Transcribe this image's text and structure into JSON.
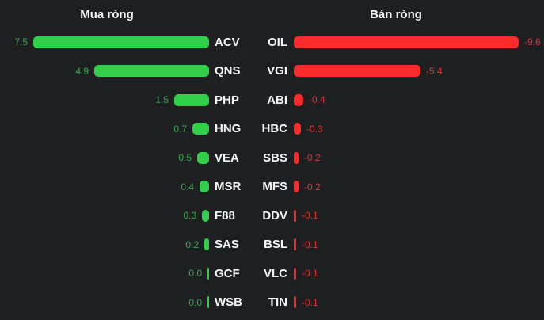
{
  "headers": {
    "left": "Mua ròng",
    "right": "Bán ròng"
  },
  "colors": {
    "background": "#1e1f20",
    "header_text": "#f5f6f7",
    "ticker_text": "#f5f6f7",
    "buy_bar": "#32cf4b",
    "buy_value_text": "#38a94e",
    "sell_bar": "#f92b2b",
    "sell_value_text": "#e03131"
  },
  "chart_data": {
    "type": "bar",
    "orientation": "horizontal",
    "grid": false,
    "panels": [
      {
        "title": "Mua ròng",
        "side": "left",
        "bar_color": "#32cf4b",
        "value_color": "#38a94e",
        "categories": [
          "ACV",
          "QNS",
          "PHP",
          "HNG",
          "VEA",
          "MSR",
          "F88",
          "SAS",
          "GCF",
          "WSB"
        ],
        "values": [
          7.5,
          4.9,
          1.5,
          0.7,
          0.5,
          0.4,
          0.3,
          0.2,
          0.0,
          0.0
        ],
        "value_labels": [
          "7.5",
          "4.9",
          "1.5",
          "0.7",
          "0.5",
          "0.4",
          "0.3",
          "0.2",
          "0.0",
          "0.0"
        ]
      },
      {
        "title": "Bán ròng",
        "side": "right",
        "bar_color": "#f92b2b",
        "value_color": "#e03131",
        "categories": [
          "OIL",
          "VGI",
          "ABI",
          "HBC",
          "SBS",
          "MFS",
          "DDV",
          "BSL",
          "VLC",
          "TIN"
        ],
        "values": [
          -9.6,
          -5.4,
          -0.4,
          -0.3,
          -0.2,
          -0.2,
          -0.1,
          -0.1,
          -0.1,
          -0.1
        ],
        "value_labels": [
          "-9.6",
          "-5.4",
          "-0.4",
          "-0.3",
          "-0.2",
          "-0.2",
          "-0.1",
          "-0.1",
          "-0.1",
          "-0.1"
        ]
      }
    ]
  }
}
